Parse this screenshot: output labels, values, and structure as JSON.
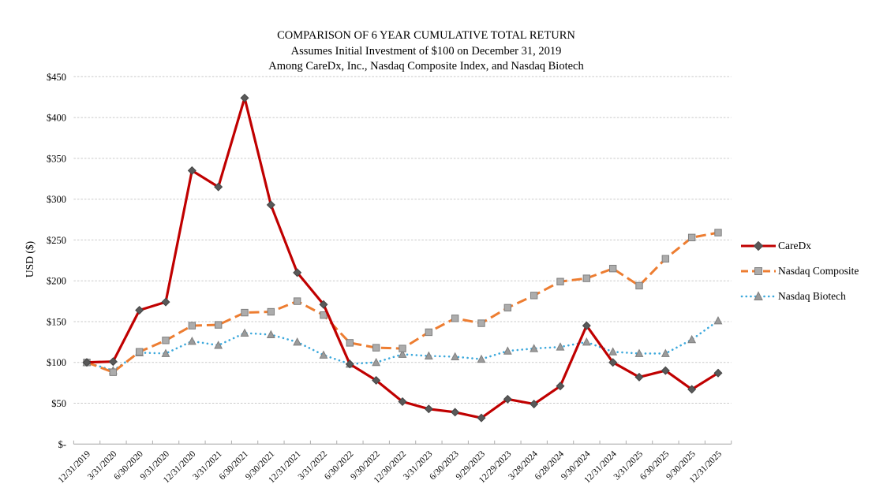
{
  "title": {
    "line1": "COMPARISON OF 6 YEAR CUMULATIVE TOTAL RETURN",
    "line2": "Assumes Initial Investment of $100 on December 31, 2019",
    "line3": "Among CareDx, Inc., Nasdaq Composite Index, and Nasdaq Biotech"
  },
  "chart_data": {
    "type": "line",
    "title": "COMPARISON OF 6 YEAR CUMULATIVE TOTAL RETURN",
    "subtitle1": "Assumes Initial Investment of $100 on December 31, 2019",
    "subtitle2": "Among CareDx, Inc., Nasdaq Composite Index, and Nasdaq Biotech",
    "xlabel": "",
    "ylabel": "USD ($)",
    "ylim": [
      0,
      450
    ],
    "y_tick_interval": 50,
    "y_tick_labels": [
      "$-",
      "$50",
      "$100",
      "$150",
      "$200",
      "$250",
      "$300",
      "$350",
      "$400",
      "$450"
    ],
    "grid": "horizontal-dashed",
    "legend_position": "right",
    "categories": [
      "12/31/2019",
      "3/31/2020",
      "6/30/2020",
      "9/31/2020",
      "12/31/2020",
      "3/31/2021",
      "6/30/2021",
      "9/30/2021",
      "12/31/2021",
      "3/31/2022",
      "6/30/2022",
      "9/30/2022",
      "12/30/2022",
      "3/31/2023",
      "6/30/2023",
      "9/29/2023",
      "12/29/2023",
      "3/28/2024",
      "6/28/2024",
      "9/30/2024",
      "12/31/2024",
      "3/31/2025",
      "6/30/2025",
      "9/30/2025",
      "12/31/2025"
    ],
    "series": [
      {
        "name": "CareDx",
        "color": "#C00000",
        "line_style": "solid",
        "marker": "diamond",
        "marker_color": "#595959",
        "values": [
          100,
          101,
          164,
          174,
          335,
          315,
          424,
          293,
          210,
          171,
          98,
          78,
          52,
          43,
          39,
          32,
          55,
          49,
          71,
          145,
          100,
          82,
          90,
          67,
          87
        ]
      },
      {
        "name": "Nasdaq Composite",
        "color": "#ED7D31",
        "line_style": "dashed",
        "marker": "square",
        "marker_color": "#ACACAC",
        "values": [
          100,
          88,
          113,
          127,
          145,
          146,
          161,
          162,
          175,
          158,
          124,
          118,
          117,
          137,
          154,
          148,
          167,
          182,
          199,
          203,
          215,
          194,
          227,
          253,
          259
        ]
      },
      {
        "name": "Nasdaq Biotech",
        "color": "#3BA8DC",
        "line_style": "dotted",
        "marker": "triangle",
        "marker_color": "#9B9B9B",
        "values": [
          100,
          90,
          112,
          111,
          126,
          121,
          136,
          134,
          125,
          109,
          98,
          100,
          110,
          108,
          107,
          104,
          114,
          117,
          119,
          125,
          113,
          111,
          111,
          128,
          151
        ]
      }
    ],
    "colors": {
      "gridline": "#C9C9C9",
      "axis": "#ADADAD",
      "text": "#000000"
    }
  }
}
